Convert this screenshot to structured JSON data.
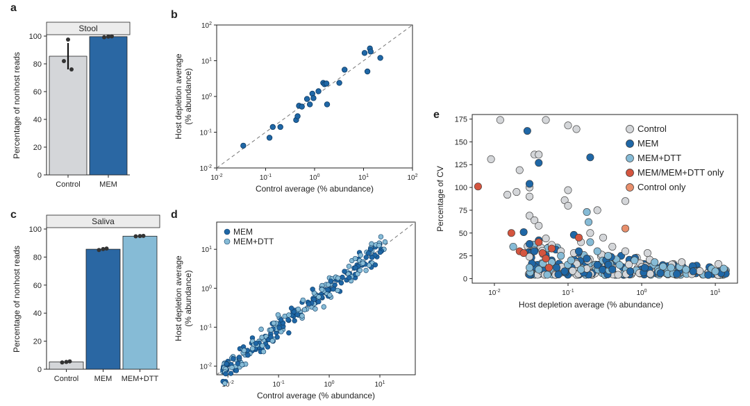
{
  "colors": {
    "control": "#d4d6d9",
    "mem": "#2a67a3",
    "mem_dtt": "#86bbd6",
    "mem_only_only": "#d4553f",
    "control_only": "#e88f6c",
    "scatter_b": "#1f67a6",
    "edge": "#222222"
  },
  "chart_data": [
    {
      "panel": "a",
      "type": "bar",
      "title": "Stool",
      "ylabel": "Percentage of nonhost reads",
      "categories": [
        "Control",
        "MEM"
      ],
      "values": [
        85.5,
        99.6
      ],
      "errors": [
        [
          76,
          95
        ],
        [
          99.2,
          100
        ]
      ],
      "points": [
        [
          82,
          97.5,
          76
        ],
        [
          99.2,
          99.6,
          99.8
        ]
      ],
      "ylim": [
        0,
        100
      ],
      "yticks": [
        "0",
        "20",
        "40",
        "60",
        "80",
        "100"
      ],
      "bar_colors": [
        "#d4d6d9",
        "#2a67a3"
      ]
    },
    {
      "panel": "b",
      "type": "scatter",
      "xlabel": "Control average (% abundance)",
      "ylabel": "Host depletion average\n(% abundance)",
      "xscale": "log",
      "yscale": "log",
      "xlim": [
        0.01,
        100
      ],
      "ylim": [
        0.01,
        100
      ],
      "xticks": [
        "10-2",
        "10-1",
        "100",
        "101",
        "102"
      ],
      "yticks": [
        "10-2",
        "10-1",
        "100",
        "101",
        "102"
      ],
      "series": [
        {
          "x": [
            0.035,
            0.12,
            0.14,
            0.2,
            0.42,
            0.45,
            0.48,
            0.55,
            0.7,
            0.8,
            0.9,
            0.95,
            1.2,
            1.5,
            1.6,
            1.8,
            1.75,
            3.2,
            4.1,
            12.0,
            10.5,
            13.5,
            14.0,
            22.0
          ],
          "y": [
            0.042,
            0.07,
            0.14,
            0.14,
            0.22,
            0.28,
            0.55,
            0.52,
            0.85,
            0.6,
            1.2,
            0.9,
            1.4,
            2.4,
            2.2,
            0.6,
            2.3,
            2.4,
            5.6,
            5.0,
            16.5,
            22.0,
            18.0,
            12.0
          ]
        }
      ],
      "reference_line": "y = x"
    },
    {
      "panel": "c",
      "type": "bar",
      "title": "Saliva",
      "ylabel": "Percentage of nonhost reads",
      "categories": [
        "Control",
        "MEM",
        "MEM+DTT"
      ],
      "values": [
        5.2,
        85.6,
        94.9
      ],
      "points": [
        [
          4.8,
          5.2,
          5.6
        ],
        [
          85.0,
          85.7,
          86.1
        ],
        [
          94.8,
          95.0,
          95.1
        ]
      ],
      "ylim": [
        0,
        100
      ],
      "yticks": [
        "0",
        "20",
        "40",
        "60",
        "80",
        "100"
      ],
      "bar_colors": [
        "#d4d6d9",
        "#2a67a3",
        "#86bbd6"
      ]
    },
    {
      "panel": "d",
      "type": "scatter",
      "xlabel": "Control average (% abundance)",
      "ylabel": "Host depletion average\n(% abundance)",
      "xscale": "log",
      "yscale": "log",
      "xlim": [
        0.006,
        50
      ],
      "ylim": [
        0.006,
        50
      ],
      "xticks": [
        "10-2",
        "10-1",
        "100",
        "101"
      ],
      "yticks": [
        "10-2",
        "10-1",
        "100",
        "101"
      ],
      "legend": "top-left",
      "series": [
        {
          "name": "MEM",
          "color": "#1f67a6"
        },
        {
          "name": "MEM+DTT",
          "color": "#86bbd6"
        }
      ],
      "reference_line": "y = x"
    },
    {
      "panel": "e",
      "type": "scatter",
      "xlabel": "Host depletion average (% abundance)",
      "ylabel": "Percentage of CV",
      "xscale": "log",
      "xlim": [
        0.005,
        20
      ],
      "ylim": [
        -5,
        180
      ],
      "xticks": [
        "10-2",
        "10-1",
        "100",
        "101"
      ],
      "yticks": [
        "0",
        "25",
        "50",
        "75",
        "100",
        "125",
        "150",
        "175"
      ],
      "legend": "top-right",
      "series": [
        {
          "name": "Control",
          "color": "#d4d6d9",
          "x": [
            0.012,
            0.05,
            0.1,
            0.13,
            0.009,
            0.022,
            0.035,
            0.04,
            0.03,
            0.03,
            0.1,
            0.015,
            0.09,
            0.1,
            0.25,
            0.6,
            0.02,
            0.03,
            0.035,
            0.04,
            0.05,
            0.06,
            0.08,
            0.12,
            0.15,
            0.2,
            0.3,
            0.4,
            0.6,
            1.2,
            3.5,
            11
          ],
          "y": [
            174,
            174,
            168,
            164,
            131,
            119,
            136,
            136,
            100,
            90,
            97,
            92,
            86,
            80,
            75,
            85,
            95,
            69,
            64,
            58,
            44,
            37,
            30,
            28,
            40,
            50,
            45,
            35,
            30,
            28,
            18,
            16
          ]
        },
        {
          "name": "MEM",
          "color": "#1f67a6",
          "x": [
            0.028,
            0.2,
            0.04,
            0.03,
            0.025,
            0.03,
            0.035,
            0.04,
            0.05,
            0.06,
            0.07,
            0.09,
            0.12,
            0.14,
            0.18,
            0.25,
            0.4,
            0.7,
            1.1,
            1.8,
            3.0,
            5.0,
            8.0,
            12
          ],
          "y": [
            162,
            133,
            127,
            104,
            51,
            38,
            30,
            42,
            25,
            20,
            12,
            8,
            48,
            30,
            22,
            15,
            10,
            8,
            12,
            6,
            5,
            8,
            4,
            6
          ]
        },
        {
          "name": "MEM+DTT",
          "color": "#86bbd6",
          "x": [
            0.018,
            0.03,
            0.04,
            0.06,
            0.08,
            0.11,
            0.15,
            0.18,
            0.19,
            0.2,
            0.25,
            0.35,
            0.5,
            0.8,
            1.5,
            2.5,
            4,
            10,
            13
          ],
          "y": [
            35,
            12,
            10,
            18,
            25,
            20,
            10,
            73,
            62,
            40,
            30,
            25,
            15,
            20,
            18,
            12,
            10,
            8,
            11
          ]
        },
        {
          "name": "MEM/MEM+DTT only",
          "color": "#d4553f",
          "x": [
            0.006,
            0.017,
            0.022,
            0.025,
            0.04,
            0.045,
            0.05,
            0.055,
            0.06,
            0.14
          ],
          "y": [
            101,
            50,
            30,
            28,
            40,
            28,
            22,
            12,
            33,
            45
          ]
        },
        {
          "name": "Control only",
          "color": "#e88f6c",
          "x": [
            0.6
          ],
          "y": [
            55
          ]
        }
      ]
    }
  ],
  "panels": {
    "a": {
      "letter": "a"
    },
    "b": {
      "letter": "b"
    },
    "c": {
      "letter": "c"
    },
    "d": {
      "letter": "d"
    },
    "e": {
      "letter": "e"
    }
  }
}
